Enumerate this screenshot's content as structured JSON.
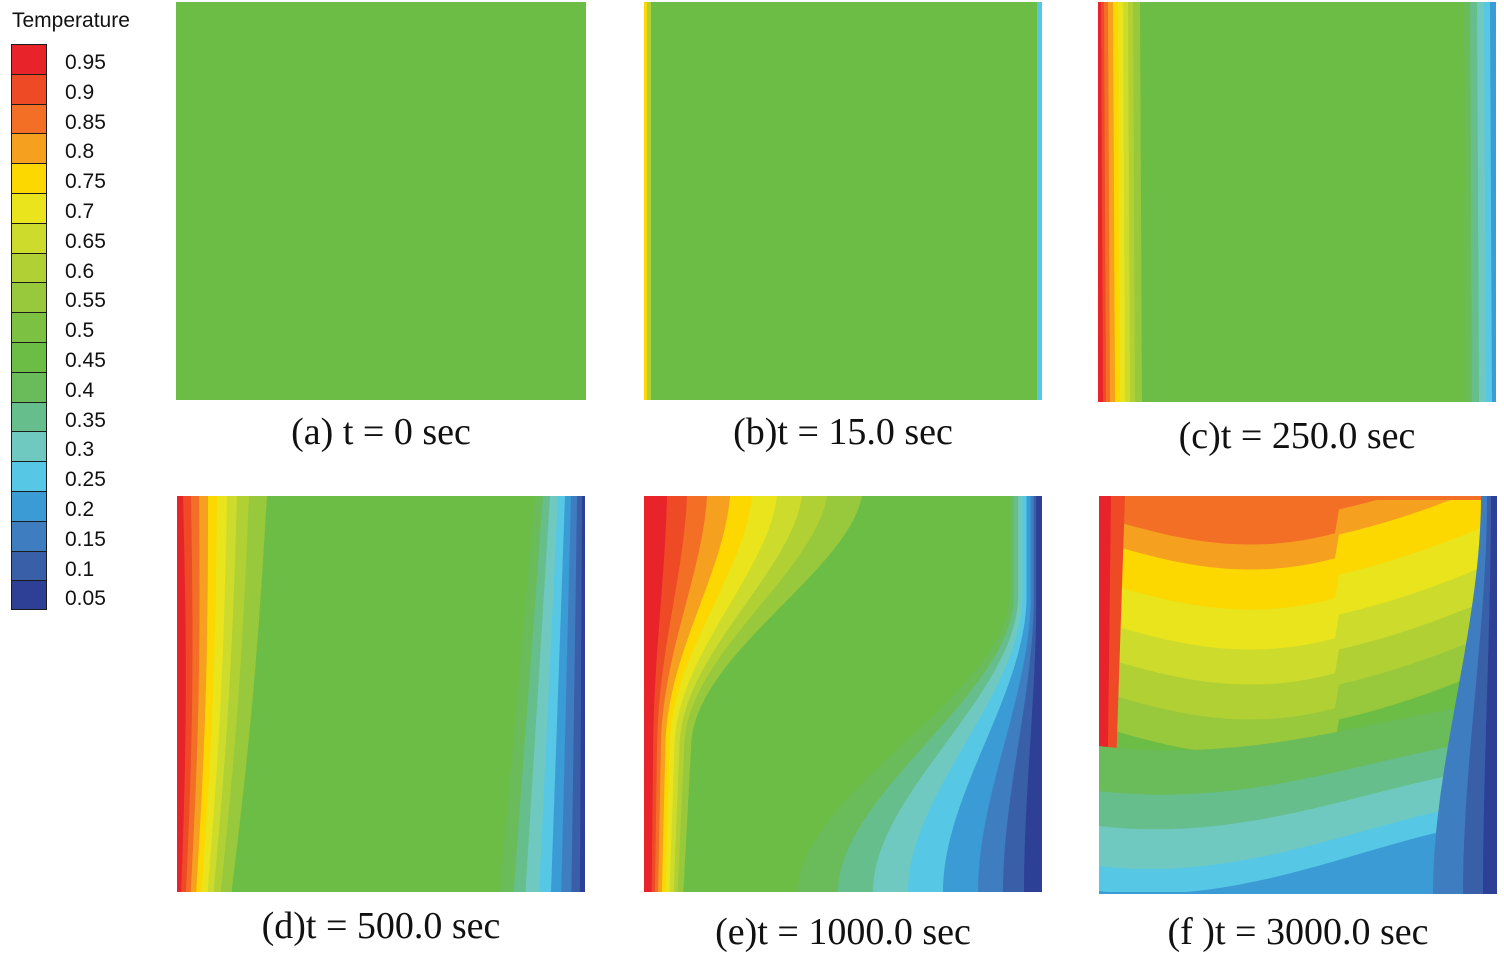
{
  "chart_data": {
    "type": "heatmap",
    "legend": {
      "title": "Temperature",
      "levels": [
        0.95,
        0.9,
        0.85,
        0.8,
        0.75,
        0.7,
        0.65,
        0.6,
        0.55,
        0.5,
        0.45,
        0.4,
        0.35,
        0.3,
        0.25,
        0.2,
        0.15,
        0.1,
        0.05
      ],
      "colors": [
        "#e8232a",
        "#ee4a26",
        "#f36f25",
        "#f6a020",
        "#fcd800",
        "#e9e41c",
        "#cddc2c",
        "#b0d034",
        "#98c83c",
        "#7dc143",
        "#6cbd45",
        "#6abb59",
        "#66be8c",
        "#70c9c1",
        "#56c7e5",
        "#3a9bd5",
        "#3f7dc1",
        "#3a5fa9",
        "#2e3f96"
      ]
    },
    "panels": [
      {
        "caption": "(a) t = 0 sec",
        "time": 0,
        "label": "a"
      },
      {
        "caption": "(b)t = 15.0 sec",
        "time": 15.0,
        "label": "b"
      },
      {
        "caption": "(c)t = 250.0 sec",
        "time": 250.0,
        "label": "c"
      },
      {
        "caption": "(d)t = 500.0 sec",
        "time": 500.0,
        "label": "d"
      },
      {
        "caption": "(e)t = 1000.0 sec",
        "time": 1000.0,
        "label": "e"
      },
      {
        "caption": "(f )t = 3000.0 sec",
        "time": 3000.0,
        "label": "f"
      }
    ]
  }
}
